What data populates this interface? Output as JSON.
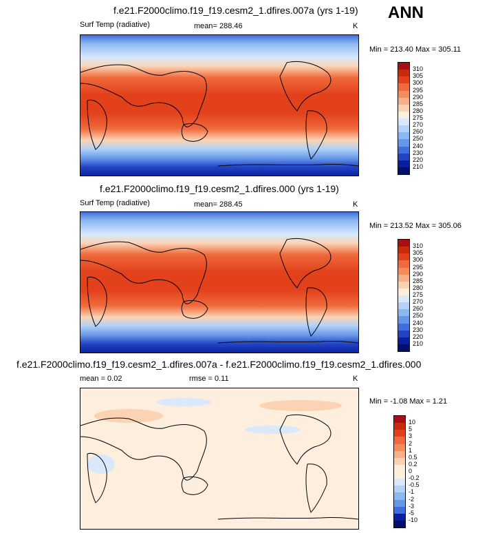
{
  "season": "ANN",
  "panels": [
    {
      "title": "f.e21.F2000climo.f19_f19.cesm2_1.dfires.007a (yrs 1-19)",
      "variable": "Surf Temp (radiative)",
      "stat": "mean= 288.46",
      "units": "K",
      "minmax": "Min = 213.40 Max = 305.11"
    },
    {
      "title": "f.e21.F2000climo.f19_f19.cesm2_1.dfires.000 (yrs 1-19)",
      "variable": "Surf Temp (radiative)",
      "stat": "mean= 288.45",
      "units": "K",
      "minmax": "Min = 213.52 Max = 305.06"
    },
    {
      "title": "f.e21.F2000climo.f19_f19.cesm2_1.dfires.007a - f.e21.F2000climo.f19_f19.cesm2_1.dfires.000",
      "variable": "mean =   0.02",
      "stat": "rmse =   0.11",
      "units": "K",
      "minmax": "Min =  -1.08 Max =   1.21"
    }
  ],
  "chart_data": [
    {
      "type": "heatmap",
      "title": "f.e21.F2000climo.f19_f19.cesm2_1.dfires.007a (yrs 1-19)",
      "subtitle": "Surf Temp (radiative)",
      "mean": 288.46,
      "min": 213.4,
      "max": 305.11,
      "units": "K",
      "colorbar_levels": [
        "310",
        "305",
        "300",
        "295",
        "290",
        "285",
        "280",
        "275",
        "270",
        "260",
        "250",
        "240",
        "230",
        "220",
        "210"
      ],
      "colorbar_colors": [
        "#a50f15",
        "#cb2a0a",
        "#e2411c",
        "#ef6a3c",
        "#f38d5e",
        "#f7b087",
        "#fbd3b3",
        "#fdeede",
        "#d9e9fb",
        "#b3d2f7",
        "#8cb8f1",
        "#6597e8",
        "#3f6fdc",
        "#2244c4",
        "#0b1f9c",
        "#00106e"
      ]
    },
    {
      "type": "heatmap",
      "title": "f.e21.F2000climo.f19_f19.cesm2_1.dfires.000 (yrs 1-19)",
      "subtitle": "Surf Temp (radiative)",
      "mean": 288.45,
      "min": 213.52,
      "max": 305.06,
      "units": "K",
      "colorbar_levels": [
        "310",
        "305",
        "300",
        "295",
        "290",
        "285",
        "280",
        "275",
        "270",
        "260",
        "250",
        "240",
        "230",
        "220",
        "210"
      ],
      "colorbar_colors": [
        "#a50f15",
        "#cb2a0a",
        "#e2411c",
        "#ef6a3c",
        "#f38d5e",
        "#f7b087",
        "#fbd3b3",
        "#fdeede",
        "#d9e9fb",
        "#b3d2f7",
        "#8cb8f1",
        "#6597e8",
        "#3f6fdc",
        "#2244c4",
        "#0b1f9c",
        "#00106e"
      ]
    },
    {
      "type": "heatmap",
      "title": "f.e21.F2000climo.f19_f19.cesm2_1.dfires.007a - f.e21.F2000climo.f19_f19.cesm2_1.dfires.000",
      "mean": 0.02,
      "rmse": 0.11,
      "min": -1.08,
      "max": 1.21,
      "units": "K",
      "colorbar_levels": [
        "10",
        "5",
        "3",
        "2",
        "1",
        "0.5",
        "0.2",
        "0",
        "-0.2",
        "-0.5",
        "-1",
        "-2",
        "-3",
        "-5",
        "-10"
      ],
      "colorbar_colors": [
        "#a50f15",
        "#cb2a0a",
        "#e2411c",
        "#ef6a3c",
        "#f38d5e",
        "#f7b087",
        "#fbd3b3",
        "#fdeede",
        "#fdeede",
        "#d9e9fb",
        "#b3d2f7",
        "#8cb8f1",
        "#6597e8",
        "#3f6fdc",
        "#0b1f9c",
        "#00106e"
      ]
    }
  ]
}
